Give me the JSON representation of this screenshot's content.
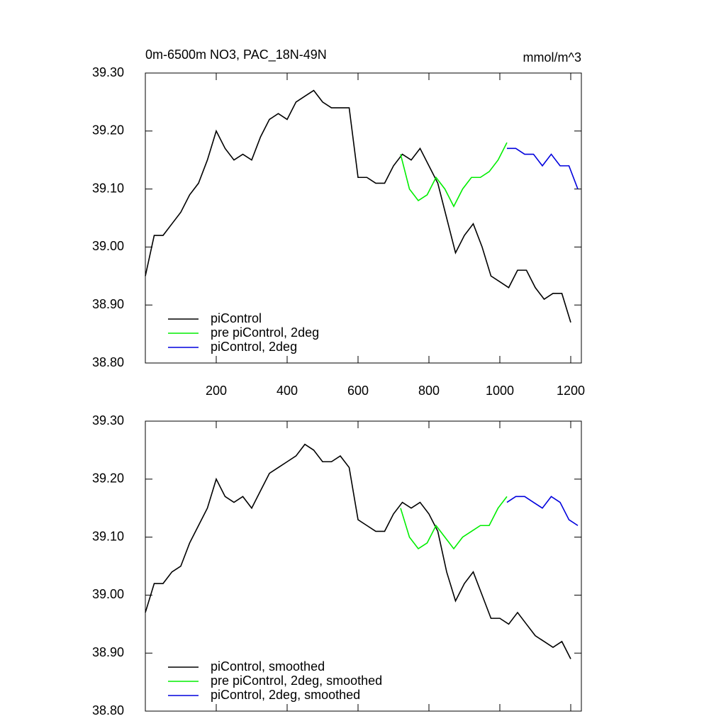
{
  "chart_data": [
    {
      "type": "line",
      "title": "0m-6500m NO3, PAC_18N-49N",
      "units": "mmol/m^3",
      "xlim": [
        0,
        1230
      ],
      "xticks": [
        200,
        400,
        600,
        800,
        1000,
        1200
      ],
      "ylim": [
        38.8,
        39.3
      ],
      "yticks": [
        {
          "value": 38.8,
          "label": "38.80"
        },
        {
          "value": 38.9,
          "label": "38.90"
        },
        {
          "value": 39.0,
          "label": "39.00"
        },
        {
          "value": 39.1,
          "label": "39.10"
        },
        {
          "value": 39.2,
          "label": "39.20"
        },
        {
          "value": 39.3,
          "label": "39.30"
        }
      ],
      "series": [
        {
          "name": "piControl",
          "color": "#000000",
          "x": [
            0,
            25,
            50,
            75,
            100,
            125,
            150,
            175,
            200,
            225,
            250,
            275,
            300,
            325,
            350,
            375,
            400,
            425,
            450,
            475,
            500,
            525,
            550,
            575,
            600,
            625,
            650,
            675,
            700,
            725,
            750,
            775,
            800,
            825,
            850,
            875,
            900,
            925,
            950,
            975,
            1000,
            1025,
            1050,
            1075,
            1100,
            1125,
            1150,
            1175,
            1200
          ],
          "values": [
            38.95,
            39.02,
            39.02,
            39.04,
            39.06,
            39.09,
            39.11,
            39.15,
            39.2,
            39.17,
            39.15,
            39.16,
            39.15,
            39.19,
            39.22,
            39.23,
            39.22,
            39.25,
            39.26,
            39.27,
            39.25,
            39.24,
            39.24,
            39.24,
            39.12,
            39.12,
            39.11,
            39.11,
            39.14,
            39.16,
            39.15,
            39.17,
            39.14,
            39.11,
            39.05,
            38.99,
            39.02,
            39.04,
            39.0,
            38.95,
            38.94,
            38.93,
            38.96,
            38.96,
            38.93,
            38.91,
            38.92,
            38.92,
            38.87
          ]
        },
        {
          "name": "pre piControl, 2deg",
          "color": "#00ee00",
          "x": [
            720,
            745,
            770,
            795,
            820,
            845,
            870,
            895,
            920,
            945,
            970,
            995,
            1020
          ],
          "values": [
            39.16,
            39.1,
            39.08,
            39.09,
            39.12,
            39.1,
            39.07,
            39.1,
            39.12,
            39.12,
            39.13,
            39.15,
            39.18
          ]
        },
        {
          "name": "piControl, 2deg",
          "color": "#0000dd",
          "x": [
            1020,
            1045,
            1070,
            1095,
            1120,
            1145,
            1170,
            1195,
            1220
          ],
          "values": [
            39.17,
            39.17,
            39.16,
            39.16,
            39.14,
            39.16,
            39.14,
            39.14,
            39.1
          ]
        }
      ]
    },
    {
      "type": "line",
      "xlim": [
        0,
        1230
      ],
      "xticks": [
        200,
        400,
        600,
        800,
        1000,
        1200
      ],
      "ylim": [
        38.8,
        39.3
      ],
      "yticks": [
        {
          "value": 38.8,
          "label": "38.80"
        },
        {
          "value": 38.9,
          "label": "38.90"
        },
        {
          "value": 39.0,
          "label": "39.00"
        },
        {
          "value": 39.1,
          "label": "39.10"
        },
        {
          "value": 39.2,
          "label": "39.20"
        },
        {
          "value": 39.3,
          "label": "39.30"
        }
      ],
      "series": [
        {
          "name": "piControl, smoothed",
          "color": "#000000",
          "x": [
            0,
            25,
            50,
            75,
            100,
            125,
            150,
            175,
            200,
            225,
            250,
            275,
            300,
            325,
            350,
            375,
            400,
            425,
            450,
            475,
            500,
            525,
            550,
            575,
            600,
            625,
            650,
            675,
            700,
            725,
            750,
            775,
            800,
            825,
            850,
            875,
            900,
            925,
            950,
            975,
            1000,
            1025,
            1050,
            1075,
            1100,
            1125,
            1150,
            1175,
            1200
          ],
          "values": [
            38.97,
            39.02,
            39.02,
            39.04,
            39.05,
            39.09,
            39.12,
            39.15,
            39.2,
            39.17,
            39.16,
            39.17,
            39.15,
            39.18,
            39.21,
            39.22,
            39.23,
            39.24,
            39.26,
            39.25,
            39.23,
            39.23,
            39.24,
            39.22,
            39.13,
            39.12,
            39.11,
            39.11,
            39.14,
            39.16,
            39.15,
            39.16,
            39.14,
            39.11,
            39.04,
            38.99,
            39.02,
            39.04,
            39.0,
            38.96,
            38.96,
            38.95,
            38.97,
            38.95,
            38.93,
            38.92,
            38.91,
            38.92,
            38.89
          ]
        },
        {
          "name": "pre piControl, 2deg, smoothed",
          "color": "#00ee00",
          "x": [
            720,
            745,
            770,
            795,
            820,
            845,
            870,
            895,
            920,
            945,
            970,
            995,
            1020
          ],
          "values": [
            39.15,
            39.1,
            39.08,
            39.09,
            39.12,
            39.1,
            39.08,
            39.1,
            39.11,
            39.12,
            39.12,
            39.15,
            39.17
          ]
        },
        {
          "name": "piControl, 2deg, smoothed",
          "color": "#0000dd",
          "x": [
            1020,
            1045,
            1070,
            1095,
            1120,
            1145,
            1170,
            1195,
            1220
          ],
          "values": [
            39.16,
            39.17,
            39.17,
            39.16,
            39.15,
            39.17,
            39.16,
            39.13,
            39.12
          ]
        }
      ]
    }
  ]
}
